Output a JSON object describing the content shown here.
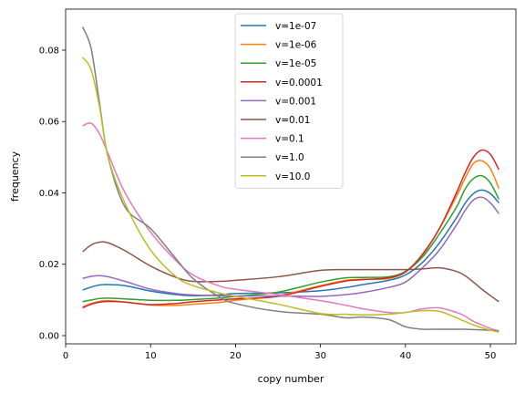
{
  "chart_data": {
    "type": "line",
    "title": "",
    "xlabel": "copy number",
    "ylabel": "frequency",
    "xlim": [
      0,
      53
    ],
    "ylim": [
      -0.0023,
      0.0915
    ],
    "xticks": [
      0,
      10,
      20,
      30,
      40,
      50
    ],
    "yticks": [
      0.0,
      0.02,
      0.04,
      0.06,
      0.08
    ],
    "ytick_labels": [
      "0.00",
      "0.02",
      "0.04",
      "0.06",
      "0.08"
    ],
    "grid": false,
    "legend_position": "top-center",
    "x": [
      2,
      3,
      4,
      5,
      7,
      10,
      13,
      15,
      18,
      20,
      25,
      30,
      33,
      35,
      38,
      40,
      42,
      44,
      46,
      47,
      48,
      49,
      50,
      51
    ],
    "series": [
      {
        "name": "v=1e-07",
        "color": "#1f77b4",
        "values": [
          0.0128,
          0.0136,
          0.0142,
          0.0143,
          0.014,
          0.0125,
          0.0115,
          0.0112,
          0.0114,
          0.0118,
          0.012,
          0.0126,
          0.0135,
          0.0143,
          0.0155,
          0.017,
          0.0205,
          0.026,
          0.033,
          0.037,
          0.0398,
          0.0408,
          0.0398,
          0.0372
        ]
      },
      {
        "name": "v=1e-06",
        "color": "#ff7f0e",
        "values": [
          0.008,
          0.009,
          0.0096,
          0.0098,
          0.0094,
          0.0086,
          0.0085,
          0.0088,
          0.0093,
          0.0099,
          0.0112,
          0.014,
          0.0155,
          0.0158,
          0.016,
          0.018,
          0.0225,
          0.03,
          0.039,
          0.044,
          0.0482,
          0.049,
          0.0468,
          0.0412
        ]
      },
      {
        "name": "v=1e-05",
        "color": "#2ca02c",
        "values": [
          0.0095,
          0.01,
          0.0104,
          0.0105,
          0.0103,
          0.0099,
          0.0099,
          0.0101,
          0.0105,
          0.011,
          0.0122,
          0.015,
          0.0162,
          0.0163,
          0.0165,
          0.018,
          0.022,
          0.0285,
          0.036,
          0.041,
          0.044,
          0.0448,
          0.0428,
          0.0382
        ]
      },
      {
        "name": "v=0.0001",
        "color": "#d62728",
        "values": [
          0.0078,
          0.0088,
          0.0094,
          0.0096,
          0.0094,
          0.0087,
          0.009,
          0.0095,
          0.01,
          0.0103,
          0.011,
          0.0138,
          0.0153,
          0.0157,
          0.0162,
          0.0178,
          0.0228,
          0.03,
          0.04,
          0.0455,
          0.05,
          0.052,
          0.0508,
          0.0465
        ]
      },
      {
        "name": "v=0.001",
        "color": "#9467bd",
        "values": [
          0.016,
          0.0166,
          0.0168,
          0.0165,
          0.0152,
          0.013,
          0.0118,
          0.0114,
          0.0112,
          0.0111,
          0.0111,
          0.011,
          0.0115,
          0.0121,
          0.0135,
          0.015,
          0.019,
          0.024,
          0.031,
          0.035,
          0.038,
          0.0388,
          0.0372,
          0.0342
        ]
      },
      {
        "name": "v=0.01",
        "color": "#8c564b",
        "values": [
          0.0235,
          0.0254,
          0.0262,
          0.026,
          0.0238,
          0.0195,
          0.0163,
          0.0152,
          0.0152,
          0.0155,
          0.0165,
          0.0183,
          0.0185,
          0.0185,
          0.0185,
          0.0185,
          0.0187,
          0.019,
          0.018,
          0.0168,
          0.015,
          0.013,
          0.0112,
          0.0095
        ]
      },
      {
        "name": "v=0.1",
        "color": "#e377c2",
        "values": [
          0.0588,
          0.0595,
          0.0565,
          0.051,
          0.04,
          0.029,
          0.021,
          0.017,
          0.014,
          0.013,
          0.0115,
          0.0098,
          0.0085,
          0.0075,
          0.0065,
          0.0065,
          0.0075,
          0.0078,
          0.0065,
          0.0055,
          0.004,
          0.003,
          0.002,
          0.0013
        ]
      },
      {
        "name": "v=1.0",
        "color": "#7f7f7f",
        "values": [
          0.0865,
          0.0805,
          0.065,
          0.05,
          0.036,
          0.03,
          0.0215,
          0.016,
          0.011,
          0.009,
          0.0068,
          0.006,
          0.005,
          0.0052,
          0.0045,
          0.0025,
          0.0018,
          0.0018,
          0.0018,
          0.0018,
          0.0017,
          0.0016,
          0.0015,
          0.0013
        ]
      },
      {
        "name": "v=10.0",
        "color": "#bcbd22",
        "values": [
          0.078,
          0.0745,
          0.064,
          0.05,
          0.037,
          0.024,
          0.0165,
          0.014,
          0.012,
          0.011,
          0.0088,
          0.0062,
          0.006,
          0.0058,
          0.006,
          0.0065,
          0.007,
          0.0068,
          0.005,
          0.004,
          0.003,
          0.0022,
          0.0015,
          0.001
        ]
      }
    ]
  }
}
